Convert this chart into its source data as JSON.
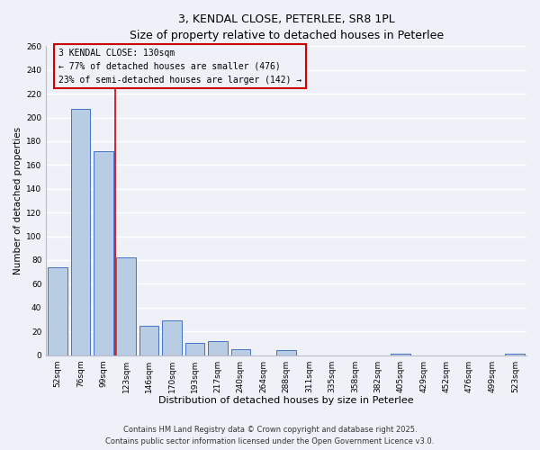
{
  "title": "3, KENDAL CLOSE, PETERLEE, SR8 1PL",
  "subtitle": "Size of property relative to detached houses in Peterlee",
  "xlabel": "Distribution of detached houses by size in Peterlee",
  "ylabel": "Number of detached properties",
  "bar_labels": [
    "52sqm",
    "76sqm",
    "99sqm",
    "123sqm",
    "146sqm",
    "170sqm",
    "193sqm",
    "217sqm",
    "240sqm",
    "264sqm",
    "288sqm",
    "311sqm",
    "335sqm",
    "358sqm",
    "382sqm",
    "405sqm",
    "429sqm",
    "452sqm",
    "476sqm",
    "499sqm",
    "523sqm"
  ],
  "bar_values": [
    74,
    207,
    172,
    82,
    25,
    29,
    10,
    12,
    5,
    0,
    4,
    0,
    0,
    0,
    0,
    1,
    0,
    0,
    0,
    0,
    1
  ],
  "bar_color": "#b8cce4",
  "bar_edge_color": "#4472c4",
  "vline_x": 2.5,
  "annotation_box_text": "3 KENDAL CLOSE: 130sqm\n← 77% of detached houses are smaller (476)\n23% of semi-detached houses are larger (142) →",
  "vline_color": "#cc0000",
  "annotation_box_edge_color": "#cc0000",
  "ylim": [
    0,
    260
  ],
  "yticks": [
    0,
    20,
    40,
    60,
    80,
    100,
    120,
    140,
    160,
    180,
    200,
    220,
    240,
    260
  ],
  "footer1": "Contains HM Land Registry data © Crown copyright and database right 2025.",
  "footer2": "Contains public sector information licensed under the Open Government Licence v3.0.",
  "bg_color": "#eef2f8",
  "grid_color": "#ffffff",
  "title_fontsize": 9,
  "xlabel_fontsize": 8,
  "ylabel_fontsize": 7.5,
  "tick_fontsize": 6.5,
  "annotation_fontsize": 7,
  "footer_fontsize": 6
}
